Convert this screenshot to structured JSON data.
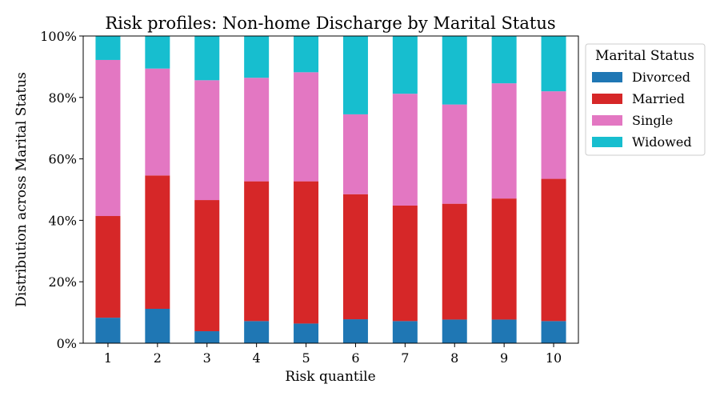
{
  "chart_data": {
    "type": "bar",
    "stacked": true,
    "title": "Risk profiles: Non-home Discharge by Marital Status",
    "xlabel": "Risk quantile",
    "ylabel": "Distribution across Marital Status",
    "categories": [
      "1",
      "2",
      "3",
      "4",
      "5",
      "6",
      "7",
      "8",
      "9",
      "10"
    ],
    "ylim": [
      0,
      1
    ],
    "yticks": [
      0,
      0.2,
      0.4,
      0.6,
      0.8,
      1.0
    ],
    "ytick_labels": [
      "0%",
      "20%",
      "40%",
      "60%",
      "80%",
      "100%"
    ],
    "grid": false,
    "legend": {
      "title": "Marital Status",
      "placement": "outside-right-top"
    },
    "series": [
      {
        "name": "Divorced",
        "color": "#1f77b4",
        "values": [
          0.083,
          0.112,
          0.039,
          0.072,
          0.064,
          0.078,
          0.072,
          0.077,
          0.077,
          0.072
        ]
      },
      {
        "name": "Married",
        "color": "#d62728",
        "values": [
          0.331,
          0.434,
          0.427,
          0.455,
          0.463,
          0.407,
          0.376,
          0.377,
          0.394,
          0.463
        ]
      },
      {
        "name": "Single",
        "color": "#e377c2",
        "values": [
          0.508,
          0.348,
          0.39,
          0.337,
          0.355,
          0.26,
          0.364,
          0.323,
          0.375,
          0.285
        ]
      },
      {
        "name": "Widowed",
        "color": "#17becf",
        "values": [
          0.078,
          0.106,
          0.144,
          0.136,
          0.118,
          0.255,
          0.188,
          0.223,
          0.154,
          0.18
        ]
      }
    ]
  }
}
